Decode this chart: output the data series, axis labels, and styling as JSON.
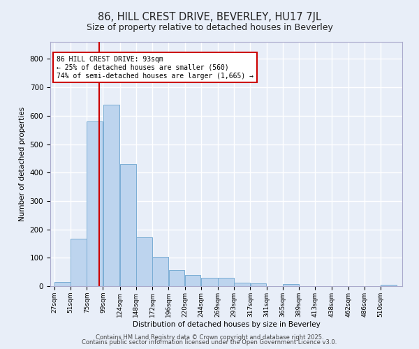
{
  "title": "86, HILL CREST DRIVE, BEVERLEY, HU17 7JL",
  "subtitle": "Size of property relative to detached houses in Beverley",
  "xlabel": "Distribution of detached houses by size in Beverley",
  "ylabel": "Number of detached properties",
  "bar_color": "#bdd4ee",
  "bar_edge_color": "#7aadd4",
  "background_color": "#e8eef8",
  "grid_color": "#ffffff",
  "categories": [
    "27sqm",
    "51sqm",
    "75sqm",
    "99sqm",
    "124sqm",
    "148sqm",
    "172sqm",
    "196sqm",
    "220sqm",
    "244sqm",
    "269sqm",
    "293sqm",
    "317sqm",
    "341sqm",
    "365sqm",
    "389sqm",
    "413sqm",
    "438sqm",
    "462sqm",
    "486sqm",
    "510sqm"
  ],
  "values": [
    15,
    168,
    580,
    640,
    430,
    173,
    103,
    57,
    40,
    30,
    30,
    13,
    10,
    0,
    8,
    0,
    0,
    0,
    0,
    0,
    6
  ],
  "bin_edges": [
    27,
    51,
    75,
    99,
    124,
    148,
    172,
    196,
    220,
    244,
    269,
    293,
    317,
    341,
    365,
    389,
    413,
    438,
    462,
    486,
    510,
    534
  ],
  "property_size": 93,
  "vline_color": "#cc0000",
  "annotation_text": "86 HILL CREST DRIVE: 93sqm\n← 25% of detached houses are smaller (560)\n74% of semi-detached houses are larger (1,665) →",
  "annotation_box_color": "#ffffff",
  "annotation_border_color": "#cc0000",
  "ylim": [
    0,
    860
  ],
  "yticks": [
    0,
    100,
    200,
    300,
    400,
    500,
    600,
    700,
    800
  ],
  "footer_line1": "Contains HM Land Registry data © Crown copyright and database right 2025.",
  "footer_line2": "Contains public sector information licensed under the Open Government Licence v3.0."
}
